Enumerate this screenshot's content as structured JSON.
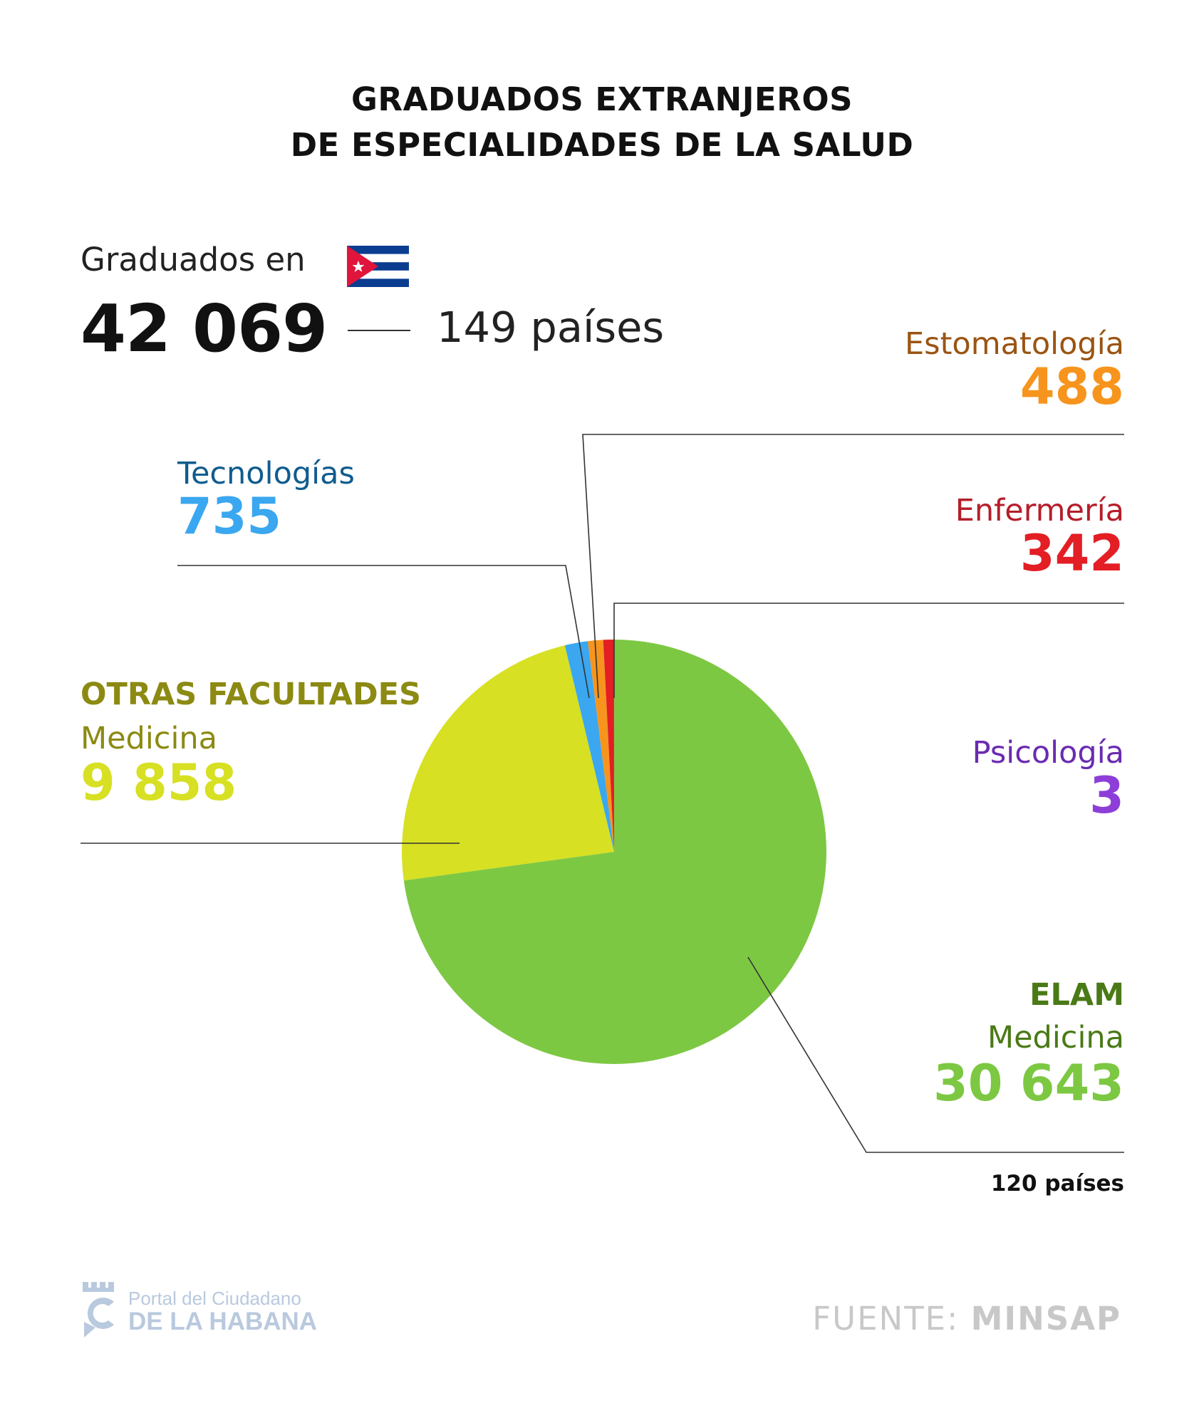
{
  "title_line1": "GRADUADOS EXTRANJEROS",
  "title_line2": "DE ESPECIALIDADES DE LA SALUD",
  "summary": {
    "graduados_label": "Graduados en",
    "total": "42 069",
    "countries": "149 países"
  },
  "labels": {
    "estomatologia": {
      "name": "Estomatología",
      "value": "488"
    },
    "tecnologias": {
      "name": "Tecnologías",
      "value": "735"
    },
    "enfermeria": {
      "name": "Enfermería",
      "value": "342"
    },
    "otras": {
      "group": "OTRAS FACULTADES",
      "name": "Medicina",
      "value": "9 858"
    },
    "psicologia": {
      "name": "Psicología",
      "value": "3"
    },
    "elam": {
      "group": "ELAM",
      "name": "Medicina",
      "value": "30 643",
      "note": "120 países"
    }
  },
  "footer": {
    "logo_line1": "Portal del Ciudadano",
    "logo_line2": "DE LA HABANA",
    "source_prefix": "FUENTE:",
    "source_name": "MINSAP"
  },
  "colors": {
    "elam": "#7dc843",
    "otras": "#d7e022",
    "tecnologias": "#3aa7f0",
    "estomatologia": "#f7941d",
    "enfermeria": "#e31e24",
    "psicologia": "#8e3ed8",
    "elam_text": "#4a7a16",
    "otras_text": "#8c8a12",
    "tecnologias_text": "#0f5c8e",
    "estomatologia_text": "#9a5412",
    "enfermeria_text": "#b51e2a",
    "psicologia_text": "#6a2bb1"
  },
  "chart_data": {
    "type": "pie",
    "title": "GRADUADOS EXTRANJEROS DE ESPECIALIDADES DE LA SALUD",
    "categories": [
      "ELAM Medicina",
      "OTRAS FACULTADES Medicina",
      "Tecnologías",
      "Estomatología",
      "Enfermería",
      "Psicología"
    ],
    "values": [
      30643,
      9858,
      735,
      488,
      342,
      3
    ],
    "series_keys": [
      "elam",
      "otras",
      "tecnologias",
      "estomatologia",
      "enfermeria",
      "psicologia"
    ],
    "start": "top",
    "direction": "clockwise"
  }
}
